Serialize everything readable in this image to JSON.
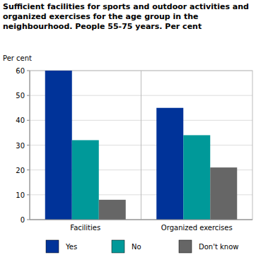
{
  "chart_data": {
    "type": "bar",
    "title": "Sufficient facilities for sports and outdoor activities and organized exercises for the age group in the neighbourhood. People 55-75 years. Per cent",
    "y_label": "Per cent",
    "categories": [
      "Facilities",
      "Organized exercises"
    ],
    "series": [
      {
        "name": "Yes",
        "color": "#003399",
        "values": [
          60,
          45
        ]
      },
      {
        "name": "No",
        "color": "#009999",
        "values": [
          32,
          34
        ]
      },
      {
        "name": "Don't know",
        "color": "#666666",
        "values": [
          8,
          21
        ]
      }
    ],
    "ylim": [
      0,
      60
    ],
    "yticks": [
      0,
      10,
      20,
      30,
      40,
      50,
      60
    ],
    "grid": true,
    "legend": "bottom"
  }
}
